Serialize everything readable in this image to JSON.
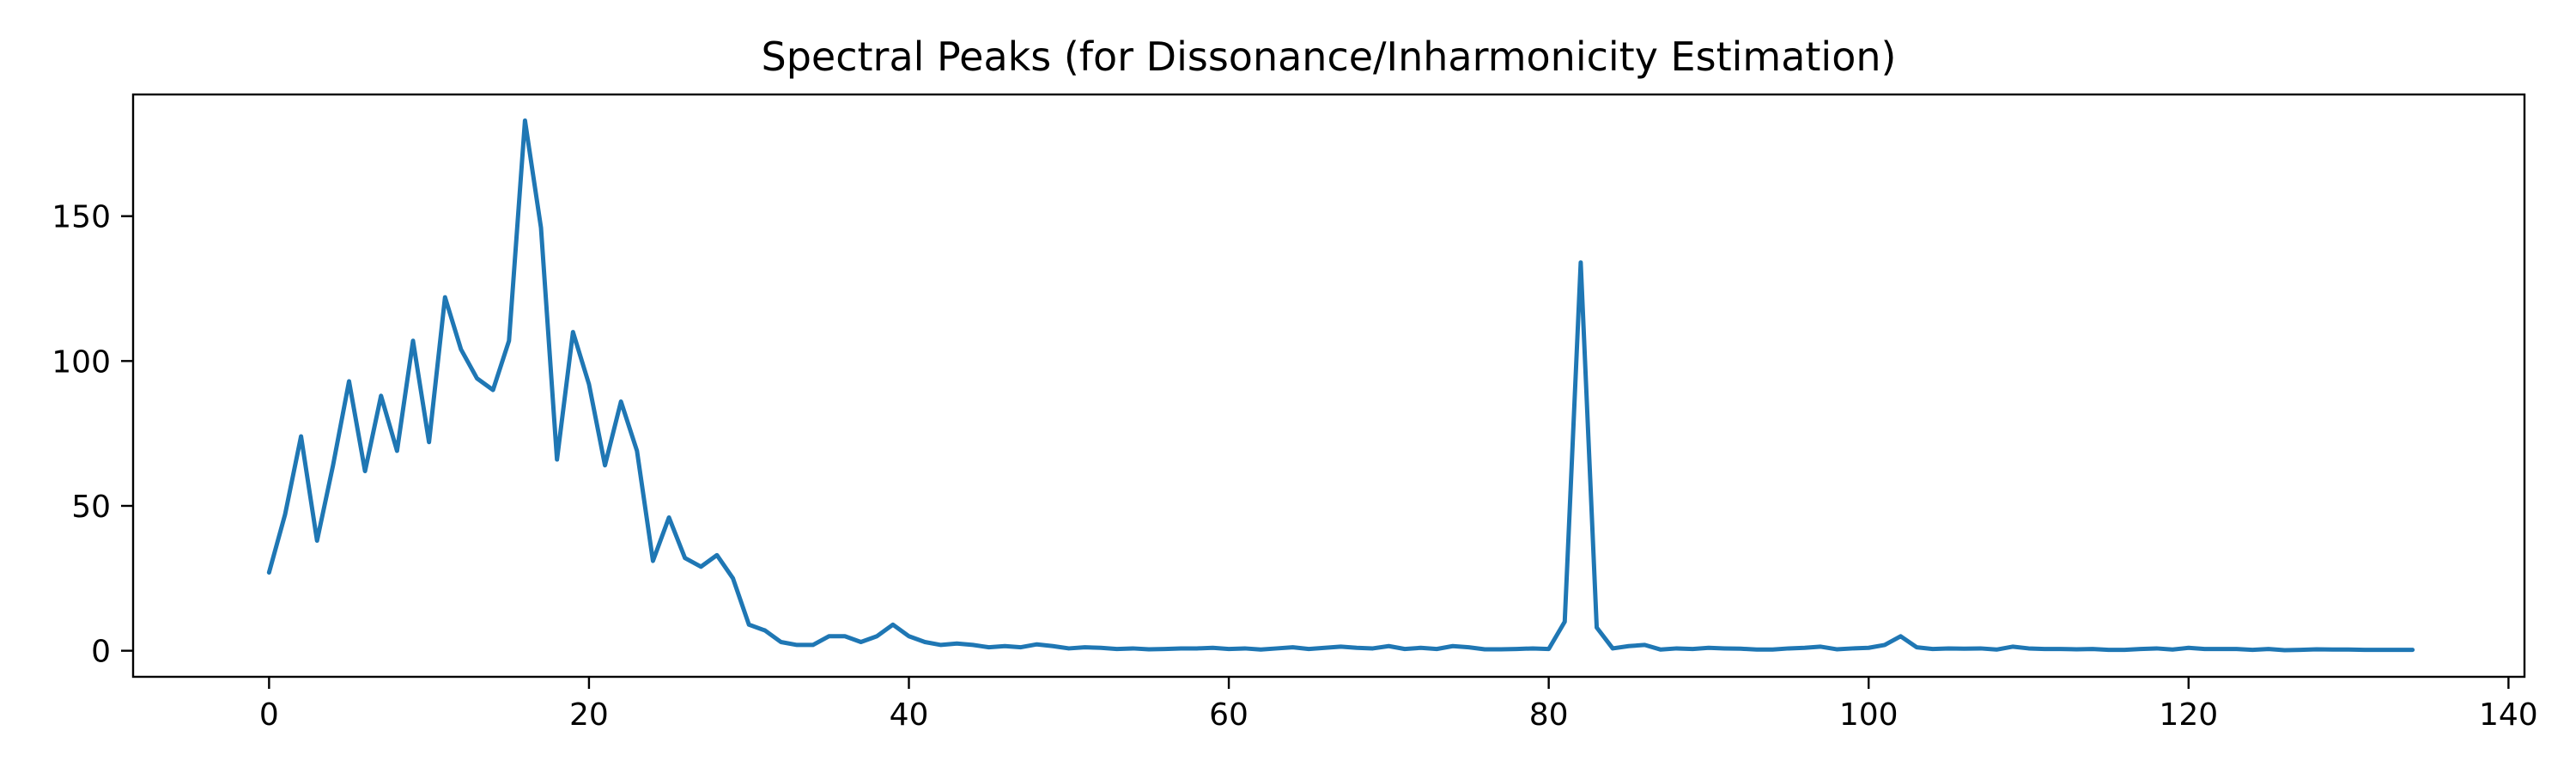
{
  "chart_data": {
    "type": "line",
    "title": "Spectral Peaks (for Dissonance/Inharmonicity Estimation)",
    "xlabel": "",
    "ylabel": "",
    "xlim": [
      -8.5,
      141
    ],
    "ylim": [
      -9,
      192
    ],
    "xticks": [
      0,
      20,
      40,
      60,
      80,
      100,
      120,
      140
    ],
    "xtick_labels": [
      "0",
      "20",
      "40",
      "60",
      "80",
      "100",
      "120",
      "140"
    ],
    "yticks": [
      0,
      50,
      100,
      150
    ],
    "ytick_labels": [
      "0",
      "50",
      "100",
      "150"
    ],
    "grid": false,
    "legend": null,
    "series_color": "#1f77b4",
    "series": [
      {
        "values": [
          27,
          47,
          74,
          38,
          64,
          93,
          62,
          88,
          69,
          107,
          72,
          122,
          104,
          94,
          90,
          107,
          183,
          146,
          66,
          110,
          92,
          64,
          86,
          69,
          31,
          46,
          32,
          29,
          33,
          25,
          9,
          7,
          3,
          2,
          2,
          5,
          5,
          3,
          5,
          9,
          5,
          3,
          2,
          2.5,
          2,
          1.2,
          1.6,
          1.2,
          2.2,
          1.6,
          0.8,
          1.2,
          1,
          0.6,
          0.8,
          0.5,
          0.6,
          0.8,
          0.8,
          1,
          0.6,
          0.8,
          0.4,
          0.8,
          1.2,
          0.6,
          1,
          1.4,
          1,
          0.8,
          1.6,
          0.6,
          1,
          0.6,
          1.6,
          1.2,
          0.5,
          0.5,
          0.6,
          0.8,
          0.6,
          10,
          134,
          8,
          0.8,
          1.6,
          2,
          0.4,
          0.8,
          0.6,
          1,
          0.8,
          0.7,
          0.4,
          0.4,
          0.8,
          1,
          1.4,
          0.5,
          0.8,
          1,
          2,
          5,
          1.2,
          0.6,
          0.8,
          0.7,
          0.8,
          0.4,
          1.4,
          0.8,
          0.6,
          0.6,
          0.5,
          0.6,
          0.3,
          0.3,
          0.6,
          0.8,
          0.4,
          1,
          0.6,
          0.6,
          0.6,
          0.3,
          0.6,
          0.2,
          0.3,
          0.5,
          0.4,
          0.4,
          0.3,
          0.3,
          0.3,
          0.3
        ]
      }
    ]
  }
}
